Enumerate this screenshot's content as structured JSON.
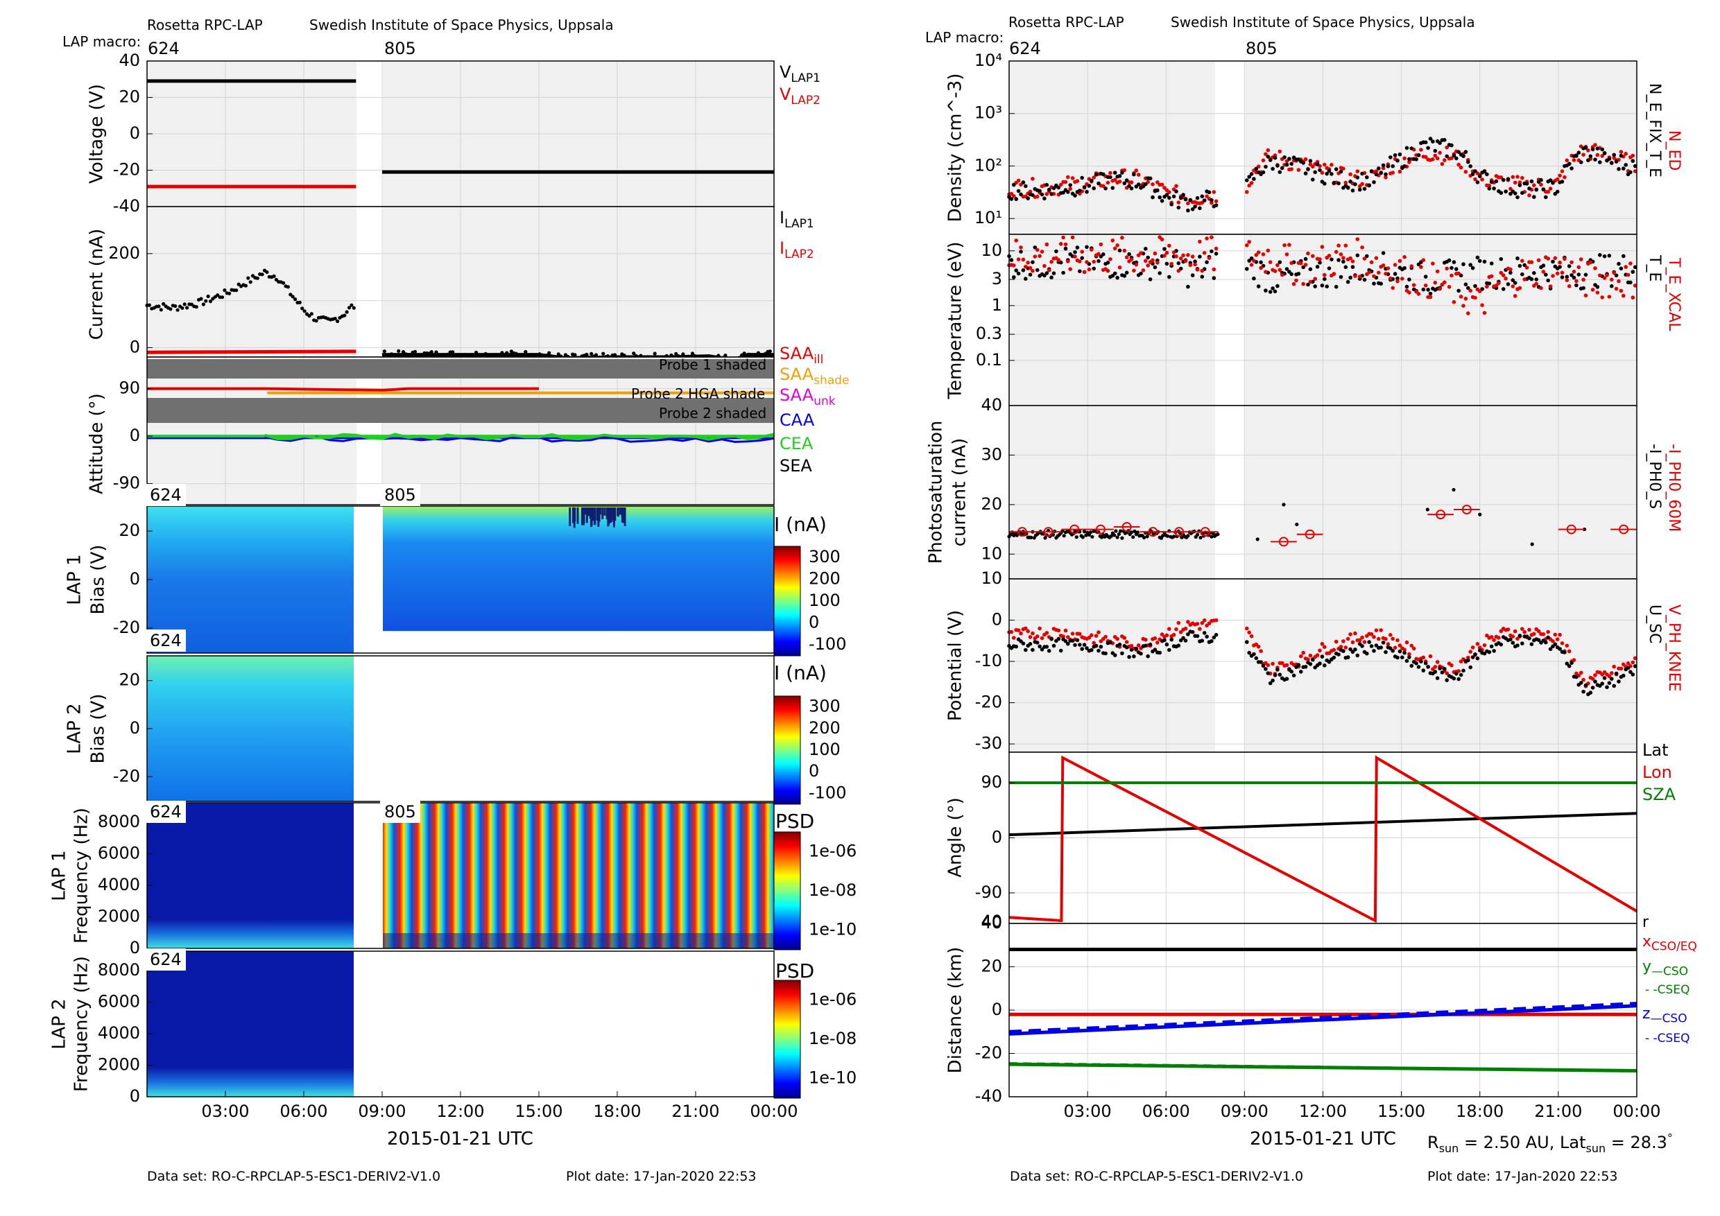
{
  "left": {
    "header": {
      "instrument": "Rosetta RPC-LAP",
      "institute": "Swedish Institute of Space Physics, Uppsala",
      "macro_label": "LAP macro:",
      "macros": [
        "624",
        "805"
      ]
    },
    "footer": {
      "dataset": "Data set: RO-C-RPCLAP-5-ESC1-DERIV2-V1.0",
      "plotdate": "Plot date: 17-Jan-2020 22:53"
    },
    "xaxis": {
      "label": "2015-01-21 UTC",
      "ticks": [
        "03:00",
        "06:00",
        "09:00",
        "12:00",
        "15:00",
        "18:00",
        "21:00",
        "00:00"
      ]
    },
    "voltage_legend": [
      "V",
      "LAP1",
      "V",
      "LAP2"
    ],
    "current_legend": [
      "I",
      "LAP1",
      "I",
      "LAP2"
    ],
    "attitude_legend": [
      "SAA",
      "ill",
      "SAA",
      "shade",
      "SAA",
      "unk",
      "CAA",
      "CEA",
      "SEA"
    ],
    "attitude_bands": [
      "Probe 1 shaded",
      "Probe 2 HGA shade",
      "Probe 2 shaded"
    ],
    "spec_titles": [
      "I (nA)",
      "I (nA)",
      "PSD",
      "PSD"
    ],
    "spec_macros": [
      "624",
      "805",
      "624",
      "624",
      "805",
      "624"
    ]
  },
  "right": {
    "header": {
      "instrument": "Rosetta RPC-LAP",
      "institute": "Swedish Institute of Space Physics, Uppsala",
      "macro_label": "LAP macro:",
      "macros": [
        "624",
        "805"
      ]
    },
    "footer": {
      "dataset": "Data set: RO-C-RPCLAP-5-ESC1-DERIV2-V1.0",
      "plotdate": "Plot date: 17-Jan-2020 22:53"
    },
    "xaxis": {
      "label": "2015-01-21 UTC",
      "ticks": [
        "03:00",
        "06:00",
        "09:00",
        "12:00",
        "15:00",
        "18:00",
        "21:00",
        "00:00"
      ]
    },
    "rsun": [
      "R",
      "sun",
      " = 2.50 AU, Lat",
      "sun",
      " = 28.3",
      "°"
    ],
    "density_legend": [
      "N_ED",
      "N_E_FIX_T_E"
    ],
    "temperature_legend": [
      "T_E_XCAL",
      "T_E"
    ],
    "photo_legend": [
      "-I_PH0_60M",
      "-I_PH0_S"
    ],
    "potential_legend": [
      "V_PH_KNEE",
      "U_SC"
    ],
    "angle_legend": [
      "Lat",
      "Lon",
      "SZA"
    ],
    "distance_legend": [
      "r",
      "x",
      "CSO/EQ",
      "y",
      "—CSO",
      "- -CSEQ",
      "z",
      "—CSO",
      "- -CSEQ"
    ]
  },
  "colors": {
    "black": "#000000",
    "red": "#e60000",
    "green": "#008000",
    "blue": "#0000e6",
    "orange": "#f0a000",
    "magenta": "#e000e0",
    "lime": "#20d020",
    "panel_bg": "#f0f0f0",
    "gap_bg": "#ffffff",
    "band": "#707070"
  },
  "chart_data": [
    {
      "type": "line",
      "ylabel": "Voltage (V)",
      "ylim": [
        -40,
        40
      ],
      "yticks": [
        40,
        20,
        0,
        -20,
        -40
      ],
      "series": [
        {
          "name": "V LAP1",
          "color": "black",
          "segments": [
            {
              "x": [
                0.0,
                8.0
              ],
              "y": [
                29,
                29
              ]
            },
            {
              "x": [
                9.0,
                24.0
              ],
              "y": [
                -21,
                -21
              ]
            }
          ]
        },
        {
          "name": "V LAP2",
          "color": "red",
          "segments": [
            {
              "x": [
                0.0,
                8.0
              ],
              "y": [
                -29,
                -29
              ]
            }
          ]
        }
      ]
    },
    {
      "type": "line",
      "ylabel": "Current (nA)",
      "ylim": [
        -20,
        300
      ],
      "yticks": [
        200,
        0
      ],
      "series": [
        {
          "name": "I LAP1",
          "color": "black",
          "x": [
            0,
            1,
            2,
            3,
            4,
            4.5,
            5,
            5.5,
            6,
            6.5,
            7,
            7.5,
            7.9,
            9.0,
            12,
            15,
            16,
            18,
            20,
            21.5,
            22,
            22.5,
            23,
            24
          ],
          "y": [
            90,
            85,
            95,
            115,
            145,
            160,
            150,
            115,
            80,
            60,
            55,
            70,
            90,
            -15,
            -15,
            -15,
            -22,
            -20,
            -20,
            -18,
            -22,
            -25,
            -15,
            -15
          ]
        },
        {
          "name": "I LAP2",
          "color": "red",
          "x": [
            0,
            8
          ],
          "y": [
            -10,
            -8
          ]
        }
      ]
    },
    {
      "type": "line",
      "ylabel": "Attitude (°)",
      "ylim": [
        -130,
        150
      ],
      "yticks": [
        90,
        0,
        -90
      ],
      "series": [
        {
          "name": "SAA ill",
          "color": "red",
          "x": [
            0,
            4.6,
            9,
            10,
            11.5,
            15
          ],
          "y": [
            90,
            90,
            87,
            90,
            90,
            90
          ]
        },
        {
          "name": "SAA shade",
          "color": "orange",
          "x": [
            4.6,
            24
          ],
          "y": [
            82,
            82
          ]
        },
        {
          "name": "CAA",
          "color": "blue",
          "x": [
            0,
            24
          ],
          "y": [
            -3,
            -3
          ]
        },
        {
          "name": "CEA",
          "color": "lime",
          "x": [
            0,
            24
          ],
          "y": [
            0,
            0
          ]
        }
      ]
    },
    {
      "type": "heatmap",
      "ylabel": "LAP 1 Bias (V)",
      "yticks": [
        20,
        0,
        -20
      ],
      "colorbar": [
        300,
        200,
        100,
        0,
        -100
      ]
    },
    {
      "type": "heatmap",
      "ylabel": "LAP 2 Bias (V)",
      "yticks": [
        20,
        0,
        -20
      ],
      "colorbar": [
        300,
        200,
        100,
        0,
        -100
      ]
    },
    {
      "type": "heatmap",
      "ylabel": "LAP 1 Frequency (Hz)",
      "yticks": [
        8000,
        6000,
        4000,
        2000,
        0
      ],
      "colorbar": [
        "1e-06",
        "1e-08",
        "1e-10"
      ]
    },
    {
      "type": "heatmap",
      "ylabel": "LAP 2 Frequency (Hz)",
      "yticks": [
        8000,
        6000,
        4000,
        2000,
        0
      ],
      "colorbar": [
        "1e-06",
        "1e-08",
        "1e-10"
      ]
    },
    {
      "type": "scatter",
      "ylabel": "Density (cm^-3)",
      "log": true,
      "ylim": [
        5,
        10000
      ],
      "series": [
        {
          "name": "N_ED",
          "color": "red",
          "x": [
            0,
            1,
            2,
            3,
            4,
            5,
            6,
            7,
            8,
            9,
            10,
            11,
            12,
            13,
            14,
            15,
            16,
            17,
            18,
            19,
            20,
            21,
            22,
            23,
            24
          ],
          "y": [
            40,
            38,
            42,
            45,
            60,
            55,
            30,
            25,
            28,
            35,
            150,
            110,
            80,
            55,
            60,
            120,
            180,
            150,
            60,
            45,
            40,
            45,
            200,
            150,
            100
          ]
        },
        {
          "name": "N_E_FIX_T_E",
          "color": "black",
          "x": [
            0,
            1,
            2,
            3,
            4,
            5,
            6,
            7,
            8,
            9,
            10,
            11,
            12,
            13,
            14,
            15,
            16,
            17,
            18,
            19,
            20,
            21,
            22,
            23,
            24
          ],
          "y": [
            35,
            33,
            38,
            42,
            55,
            50,
            25,
            20,
            25,
            30,
            120,
            100,
            70,
            50,
            55,
            130,
            250,
            200,
            60,
            40,
            35,
            40,
            180,
            130,
            90
          ]
        }
      ]
    },
    {
      "type": "scatter",
      "ylabel": "Temperature (eV)",
      "log": true,
      "ylim": [
        0.015,
        20
      ],
      "series": [
        {
          "name": "T_E_XCAL",
          "color": "red",
          "x": [
            10,
            11,
            12,
            13,
            14,
            15,
            16,
            17,
            18,
            19,
            20,
            21,
            22
          ],
          "y": [
            8,
            5,
            6,
            8,
            6,
            4,
            3,
            2,
            1,
            3,
            4,
            5,
            3
          ]
        },
        {
          "name": "T_E",
          "color": "black",
          "x": [
            0,
            2,
            4,
            6,
            7,
            8,
            9,
            10,
            12,
            14,
            16,
            18,
            20,
            22,
            24
          ],
          "y": [
            6,
            6,
            6,
            6,
            4,
            6,
            6,
            3,
            4,
            5,
            3,
            4,
            4,
            4,
            5
          ]
        }
      ]
    },
    {
      "type": "scatter",
      "ylabel": "Photosaturation current (nA)",
      "ylim": [
        10,
        40
      ],
      "yticks": [
        40,
        30,
        20,
        10
      ],
      "series": [
        {
          "name": "-I_PH0_60M",
          "color": "red",
          "x": [
            0.5,
            1.5,
            2.5,
            3.5,
            4.5,
            5.5,
            6.5,
            7.5,
            10.5,
            11.5,
            16.5,
            17.5,
            21.5,
            23.5
          ],
          "y": [
            14.5,
            14.5,
            15,
            15,
            15.5,
            14.5,
            14.5,
            14.5,
            12.5,
            14,
            18,
            19,
            15,
            15
          ]
        },
        {
          "name": "-I_PH0_S",
          "color": "black",
          "x": [
            0,
            2,
            4,
            6,
            8,
            9.5,
            10.5,
            11,
            16,
            17,
            18,
            20,
            22
          ],
          "y": [
            14,
            14,
            14,
            14,
            14,
            13,
            20,
            16,
            19,
            23,
            18,
            12,
            15
          ]
        }
      ]
    },
    {
      "type": "scatter",
      "ylabel": "Potential (V)",
      "ylim": [
        -32,
        10
      ],
      "yticks": [
        10,
        0,
        -10,
        -20,
        -30
      ],
      "series": [
        {
          "name": "V_PH_KNEE",
          "color": "red",
          "x": [
            0,
            1,
            2,
            3,
            4,
            5,
            6,
            7,
            8,
            9,
            10,
            11,
            12,
            13,
            14,
            15,
            16,
            17,
            18,
            19,
            20,
            21,
            22,
            23,
            24
          ],
          "y": [
            -4,
            -3,
            -3,
            -4,
            -5,
            -6,
            -3,
            -1,
            -1,
            -2,
            -12,
            -10,
            -7,
            -5,
            -3,
            -6,
            -10,
            -12,
            -6,
            -3,
            -3,
            -4,
            -15,
            -13,
            -10
          ]
        },
        {
          "name": "U_SC",
          "color": "black",
          "x": [
            0,
            1,
            2,
            3,
            4,
            5,
            6,
            7,
            8,
            9,
            10,
            11,
            12,
            13,
            14,
            15,
            16,
            17,
            18,
            19,
            20,
            21,
            22,
            23,
            24
          ],
          "y": [
            -6,
            -6,
            -6,
            -6,
            -7,
            -8,
            -6,
            -4,
            -4,
            -6,
            -14,
            -12,
            -10,
            -8,
            -6,
            -9,
            -12,
            -14,
            -8,
            -5,
            -5,
            -6,
            -17,
            -15,
            -12
          ]
        }
      ]
    },
    {
      "type": "line",
      "ylabel": "Angle (°)",
      "ylim": [
        -140,
        140
      ],
      "yticks": [
        90,
        0,
        -90
      ],
      "series": [
        {
          "name": "Lat",
          "color": "black",
          "x": [
            0,
            24
          ],
          "y": [
            5,
            40
          ]
        },
        {
          "name": "Lon",
          "color": "red",
          "x": [
            0,
            2.0,
            2.05,
            14.0,
            14.05,
            24
          ],
          "y": [
            -130,
            -160,
            180,
            -160,
            180,
            -120
          ]
        },
        {
          "name": "SZA",
          "color": "green",
          "x": [
            0,
            24
          ],
          "y": [
            90,
            90
          ]
        }
      ]
    },
    {
      "type": "line",
      "ylabel": "Distance (km)",
      "ylim": [
        -40,
        40
      ],
      "yticks": [
        40,
        20,
        0,
        -20,
        -40
      ],
      "series": [
        {
          "name": "r",
          "color": "black",
          "x": [
            0,
            24
          ],
          "y": [
            28,
            28
          ]
        },
        {
          "name": "x",
          "color": "red",
          "x": [
            0,
            24
          ],
          "y": [
            -2,
            -2
          ]
        },
        {
          "name": "y",
          "color": "green",
          "x": [
            0,
            24
          ],
          "y": [
            -25,
            -28
          ]
        },
        {
          "name": "z",
          "color": "blue",
          "x": [
            0,
            24
          ],
          "y": [
            -11,
            2
          ]
        }
      ]
    }
  ]
}
